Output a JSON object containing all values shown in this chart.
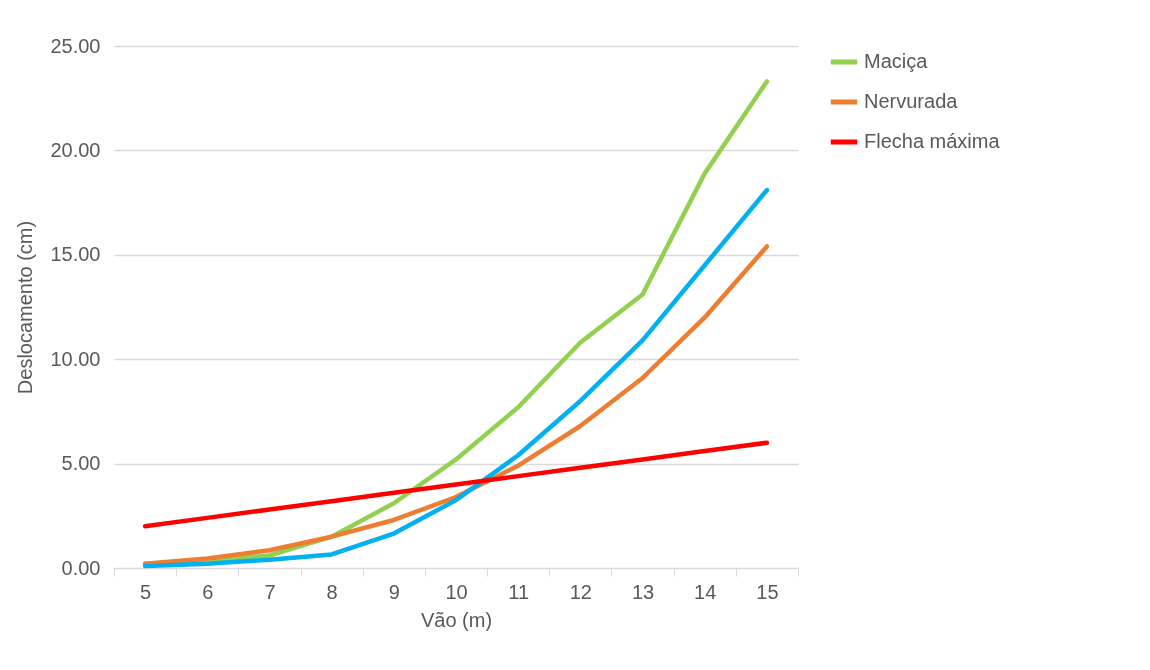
{
  "chart_data": {
    "type": "line",
    "xlabel": "Vão (m)",
    "ylabel": "Deslocamento (cm)",
    "categories": [
      "5",
      "6",
      "7",
      "8",
      "9",
      "10",
      "11",
      "12",
      "13",
      "14",
      "15"
    ],
    "series": [
      {
        "name": "Maciça",
        "color": "#92d050",
        "values": [
          0.2,
          0.35,
          0.6,
          1.5,
          3.1,
          5.2,
          7.7,
          10.8,
          13.1,
          18.9,
          23.3
        ]
      },
      {
        "name": "Nervurada",
        "color": "#ed7d31",
        "values": [
          0.2,
          0.45,
          0.85,
          1.5,
          2.3,
          3.4,
          4.9,
          6.8,
          9.1,
          12.0,
          15.4
        ]
      },
      {
        "color": "#00b0f0",
        "values": [
          0.1,
          0.2,
          0.4,
          0.65,
          1.65,
          3.25,
          5.4,
          8.0,
          10.9,
          14.5,
          18.1
        ]
      },
      {
        "name": "Flecha máxima",
        "color": "#ff0000",
        "values": [
          2.0,
          2.4,
          2.8,
          3.2,
          3.6,
          4.0,
          4.4,
          4.8,
          5.2,
          5.6,
          6.0
        ]
      }
    ],
    "ylim": [
      0,
      25
    ],
    "yticks": [
      {
        "value": 0,
        "label": "0.00"
      },
      {
        "value": 5,
        "label": "5.00"
      },
      {
        "value": 10,
        "label": "10.00"
      },
      {
        "value": 15,
        "label": "15.00"
      },
      {
        "value": 20,
        "label": "20.00"
      },
      {
        "value": 25,
        "label": "25.00"
      }
    ],
    "grid": "y",
    "legend": "right",
    "line_style": "solid"
  }
}
